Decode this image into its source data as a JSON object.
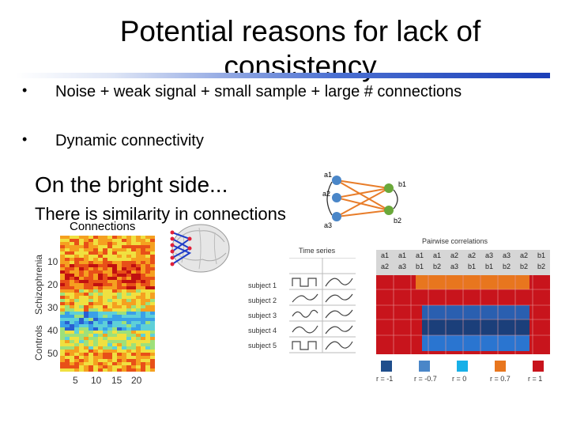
{
  "slide": {
    "title": "Potential reasons for lack of consistency",
    "bullets": [
      "Noise  + weak signal + small sample + large # connections",
      "Dynamic connectivity"
    ],
    "bright_side": "On the bright side...",
    "similarity": "There is similarity in connections",
    "connections_label": "Connections"
  },
  "heatmap": {
    "yticks": [
      "10",
      "20",
      "30",
      "40",
      "50"
    ],
    "xticks": [
      "5",
      "10",
      "15",
      "20"
    ],
    "group_labels": [
      "Schizophrenia",
      "Controls"
    ]
  },
  "network": {
    "nodes_a": [
      "a1",
      "a2",
      "a3"
    ],
    "nodes_b": [
      "b1",
      "b2"
    ]
  },
  "timeseries": {
    "header": "Time series",
    "subjects": [
      "subject 1",
      "subject 2",
      "subject 3",
      "subject 4",
      "subject 5"
    ]
  },
  "pairwise": {
    "header": "Pairwise correlations",
    "pairs_top": [
      "a1",
      "a1",
      "a1",
      "a1",
      "a2",
      "a2",
      "a3",
      "a3",
      "a2",
      "b1"
    ],
    "pairs_bottom": [
      "a2",
      "a3",
      "b1",
      "b2",
      "a3",
      "b1",
      "b1",
      "b2",
      "b2",
      "b2"
    ],
    "legend": [
      "r = -1",
      "r = -0.7",
      "r = 0",
      "r = 0.7",
      "r = 1"
    ],
    "legend_colors": [
      "#1f4e8c",
      "#4a86c8",
      "#17b0e8",
      "#e8761e",
      "#c8141c"
    ]
  }
}
